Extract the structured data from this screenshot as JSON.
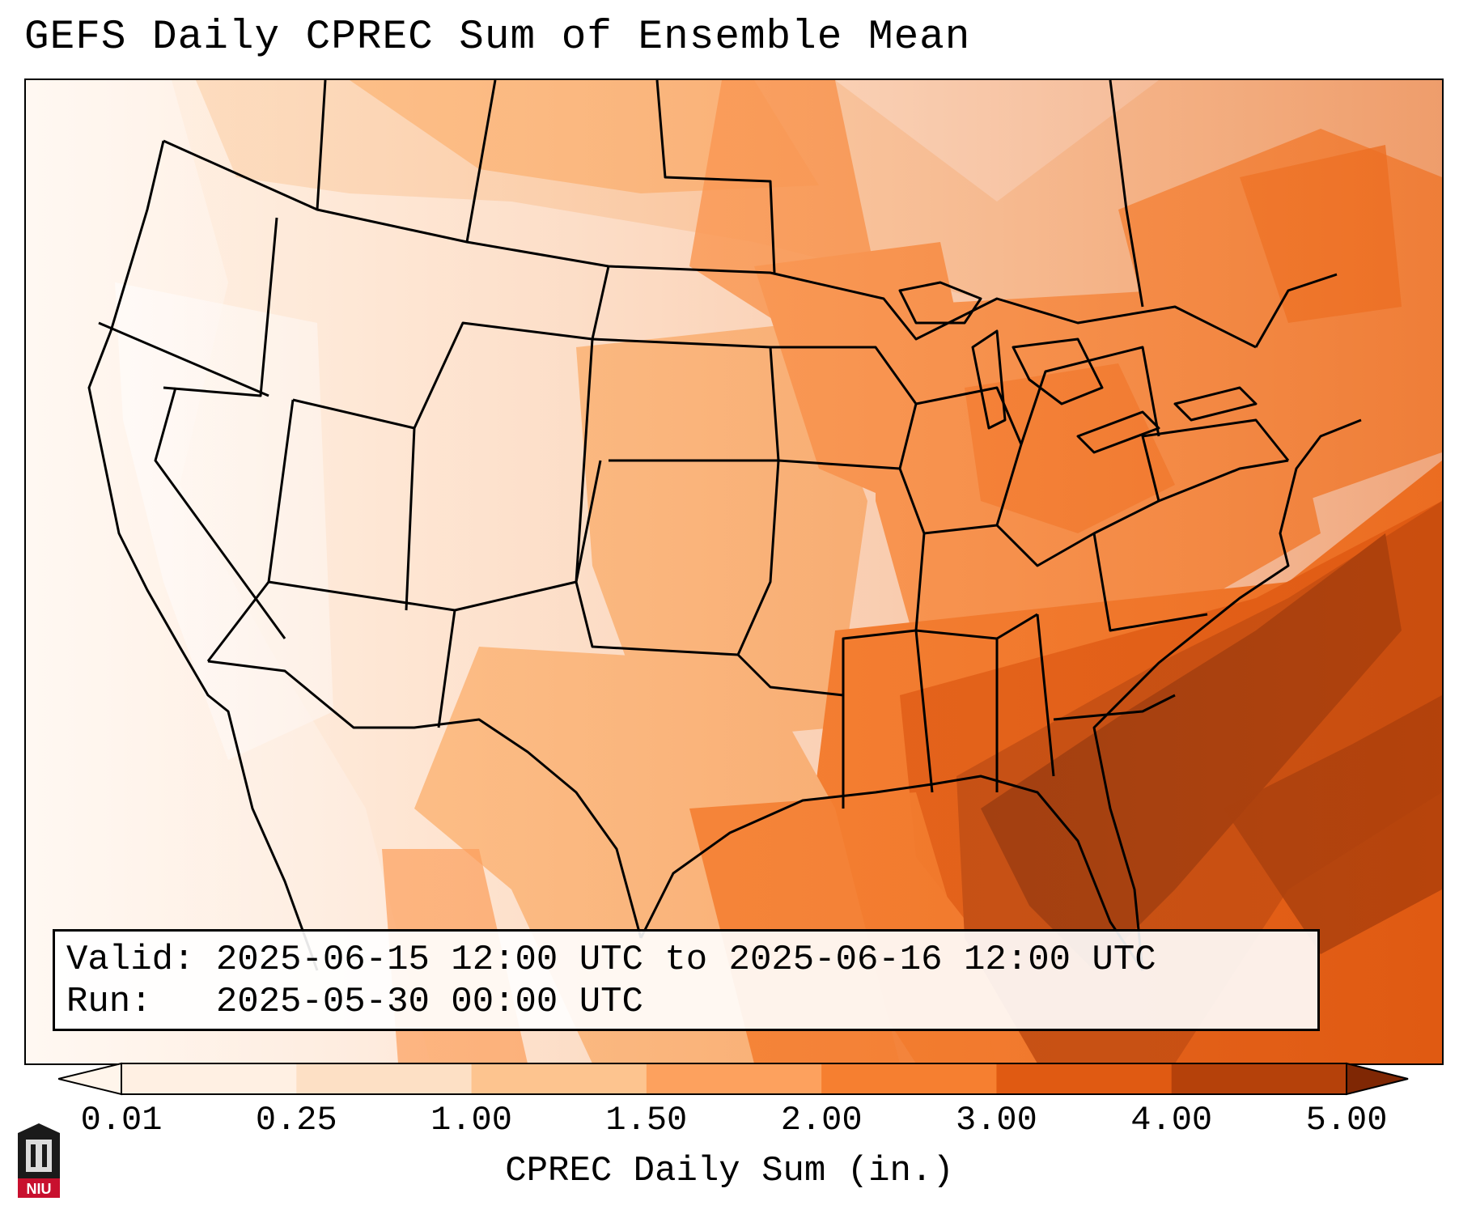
{
  "title": "GEFS Daily CPREC Sum of Ensemble Mean",
  "info": {
    "valid_label": "Valid:",
    "valid_value": "2025-06-15 12:00 UTC to 2025-06-16 12:00 UTC",
    "run_label": "Run:  ",
    "run_value": "2025-05-30 00:00 UTC"
  },
  "colorbar": {
    "label": "CPREC Daily Sum (in.)",
    "ticks": [
      "0.01",
      "0.25",
      "1.00",
      "1.50",
      "2.00",
      "3.00",
      "4.00",
      "5.00"
    ],
    "colors": [
      "#fff0e3",
      "#fde0c5",
      "#fdc48f",
      "#fda15e",
      "#f67f30",
      "#e05a12",
      "#b5410a",
      "#7f2704"
    ],
    "under_color": "#fff5eb",
    "over_color": "#7f2704",
    "extend": "both"
  },
  "logo": {
    "text": "NIU",
    "color": "#c8102e"
  }
}
